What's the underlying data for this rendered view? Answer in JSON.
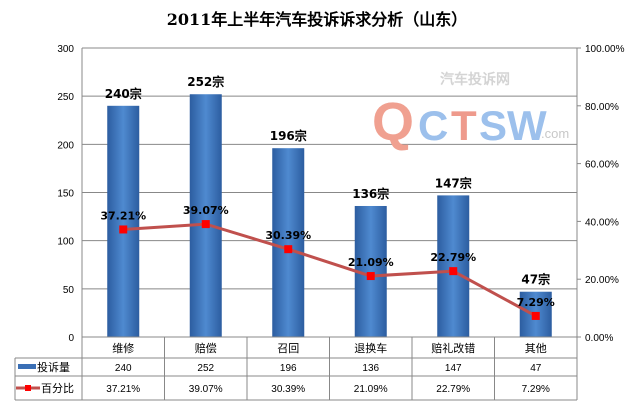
{
  "chart_data": {
    "type": "bar+line",
    "title": "2011年上半年汽车投诉诉求分析（山东）",
    "categories": [
      "维修",
      "赔偿",
      "召回",
      "退换车",
      "赔礼改错",
      "其他"
    ],
    "series": [
      {
        "name": "投诉量",
        "type": "bar",
        "axis": "left",
        "values": [
          240,
          252,
          196,
          136,
          147,
          47
        ],
        "labels": [
          "240宗",
          "252宗",
          "196宗",
          "136宗",
          "147宗",
          "47宗"
        ],
        "table": [
          "240",
          "252",
          "196",
          "136",
          "147",
          "47"
        ],
        "color": "#3a6fb5"
      },
      {
        "name": "百分比",
        "type": "line",
        "axis": "right",
        "values": [
          37.21,
          39.07,
          30.39,
          21.09,
          22.79,
          7.29
        ],
        "labels": [
          "37.21%",
          "39.07%",
          "30.39%",
          "21.09%",
          "22.79%",
          "7.29%"
        ],
        "table": [
          "37.21%",
          "39.07%",
          "30.39%",
          "21.09%",
          "22.79%",
          "7.29%"
        ],
        "color": "#c0504d",
        "marker_color": "#ff0000"
      }
    ],
    "y_left": {
      "range": [
        0,
        300
      ],
      "ticks": [
        "0",
        "50",
        "100",
        "150",
        "200",
        "250",
        "300"
      ]
    },
    "y_right": {
      "range": [
        0,
        100
      ],
      "ticks": [
        "0.00%",
        "20.00%",
        "40.00%",
        "60.00%",
        "80.00%",
        "100.00%"
      ]
    },
    "grid": true,
    "legend": "data-table",
    "watermark": "QCTSW.com 汽车投诉网"
  }
}
